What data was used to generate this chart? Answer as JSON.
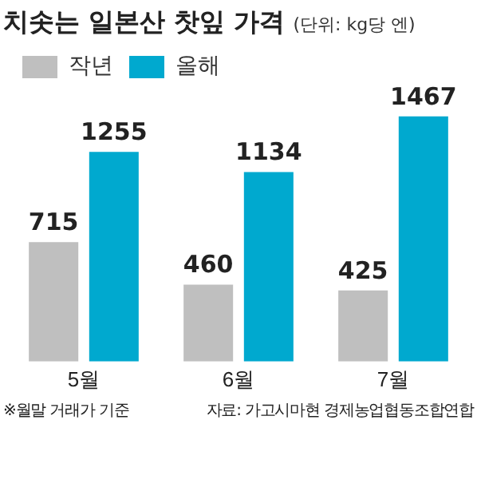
{
  "chart_data": {
    "type": "bar",
    "title": "치솟는 일본산 찻잎 가격",
    "subtitle": "(단위: kg당 엔)",
    "categories": [
      "5월",
      "6월",
      "7월"
    ],
    "series": [
      {
        "name": "작년",
        "color": "#bfbfbf",
        "values": [
          715,
          460,
          425
        ]
      },
      {
        "name": "올해",
        "color": "#00a9cf",
        "values": [
          1255,
          1134,
          1467
        ]
      }
    ],
    "data_labels": true,
    "legend": "top left",
    "grid": false,
    "annotations": [
      "※월말 거래가 기준",
      "자료: 가고시마현 경제농업협동조합연합"
    ]
  }
}
